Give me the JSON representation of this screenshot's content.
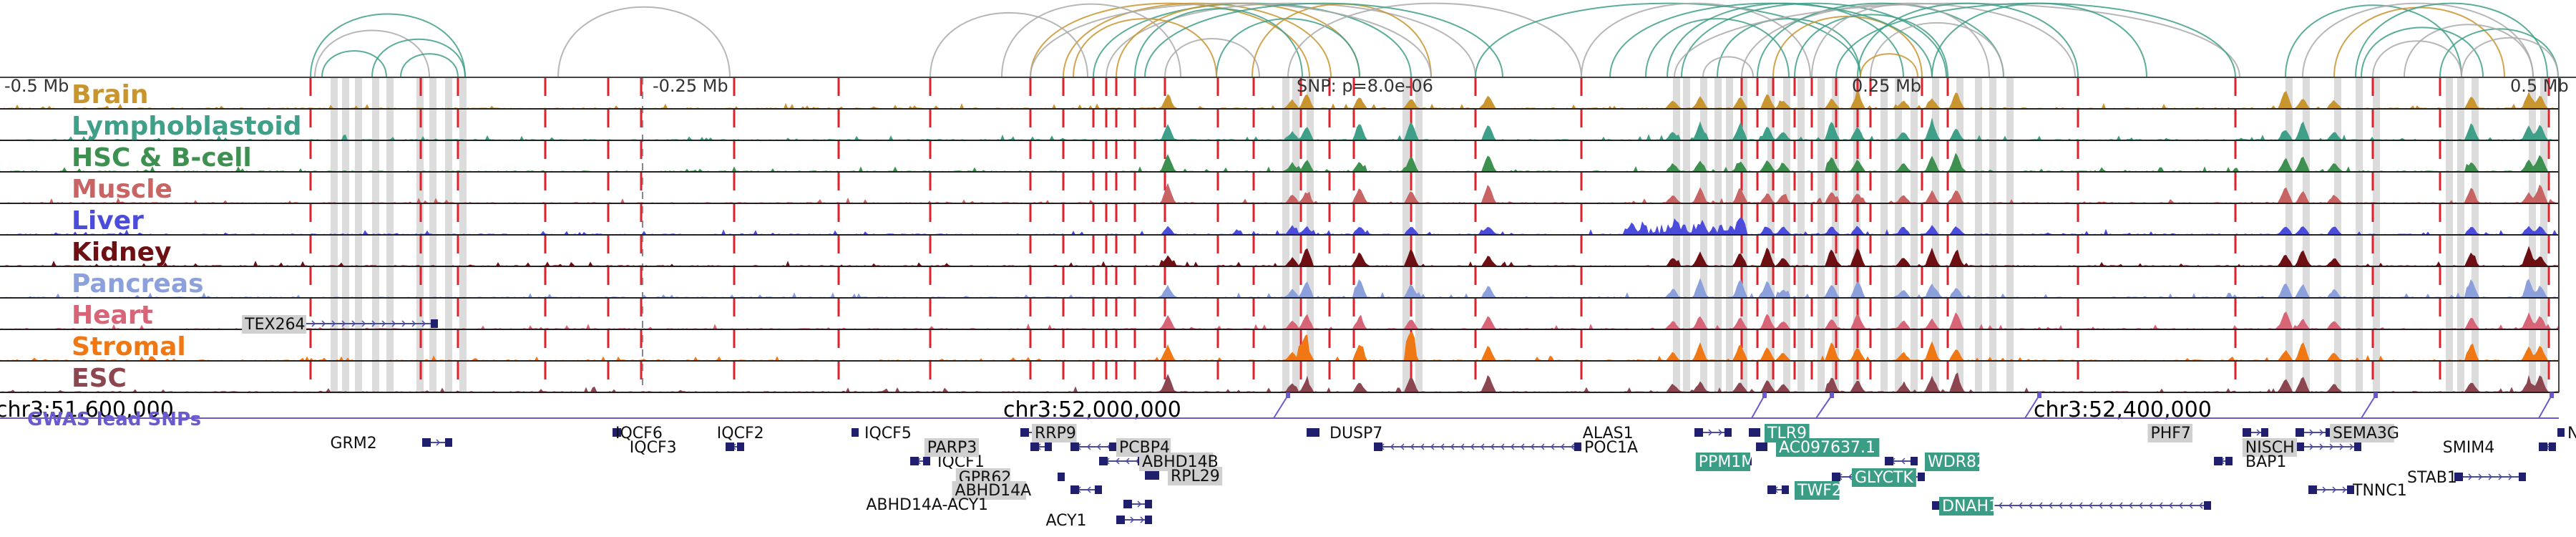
{
  "scale_labels": [
    "-0.5 Mb",
    "-0.25 Mb",
    "0.25 Mb",
    "0.5 Mb"
  ],
  "snp_label": "SNP: p=8.0e-06",
  "tracks": [
    {
      "name": "Brain",
      "color": "#c8952f"
    },
    {
      "name": "Lymphoblastoid",
      "color": "#3f9f88"
    },
    {
      "name": "HSC & B-cell",
      "color": "#3e9050"
    },
    {
      "name": "Muscle",
      "color": "#c86464"
    },
    {
      "name": "Liver",
      "color": "#4b4bdc"
    },
    {
      "name": "Kidney",
      "color": "#6e0f14"
    },
    {
      "name": "Pancreas",
      "color": "#8ca0dc"
    },
    {
      "name": "Heart",
      "color": "#d86478"
    },
    {
      "name": "Stromal",
      "color": "#f07814"
    },
    {
      "name": "ESC",
      "color": "#8c4650"
    }
  ],
  "coordinates": [
    "chr3:51,600,000",
    "chr3:52,000,000",
    "chr3:52,400,000"
  ],
  "gwas_label": "GWAS lead SNPs",
  "genes": [
    {
      "name": "TEX264",
      "highlight": "gray"
    },
    {
      "name": "GRM2",
      "highlight": "none"
    },
    {
      "name": "IQCF6",
      "highlight": "none"
    },
    {
      "name": "IQCF3",
      "highlight": "none"
    },
    {
      "name": "IQCF2",
      "highlight": "none"
    },
    {
      "name": "IQCF5",
      "highlight": "none"
    },
    {
      "name": "IQCF1",
      "highlight": "none"
    },
    {
      "name": "RRP9",
      "highlight": "gray"
    },
    {
      "name": "PARP3",
      "highlight": "gray"
    },
    {
      "name": "PCBP4",
      "highlight": "gray"
    },
    {
      "name": "ABHD14B",
      "highlight": "gray"
    },
    {
      "name": "RPL29",
      "highlight": "gray"
    },
    {
      "name": "GPR62",
      "highlight": "gray"
    },
    {
      "name": "ABHD14A",
      "highlight": "gray"
    },
    {
      "name": "ABHD14A-ACY1",
      "highlight": "none"
    },
    {
      "name": "ACY1",
      "highlight": "none"
    },
    {
      "name": "DUSP7",
      "highlight": "none"
    },
    {
      "name": "POC1A",
      "highlight": "none"
    },
    {
      "name": "ALAS1",
      "highlight": "none"
    },
    {
      "name": "TLR9",
      "highlight": "teal"
    },
    {
      "name": "AC097637.1",
      "highlight": "teal"
    },
    {
      "name": "PPM1M",
      "highlight": "teal"
    },
    {
      "name": "WDR82",
      "highlight": "teal"
    },
    {
      "name": "GLYCTK",
      "highlight": "teal"
    },
    {
      "name": "TWF2",
      "highlight": "teal"
    },
    {
      "name": "DNAH1",
      "highlight": "teal"
    },
    {
      "name": "PHF7",
      "highlight": "gray"
    },
    {
      "name": "SEMA3G",
      "highlight": "gray"
    },
    {
      "name": "NISCH",
      "highlight": "gray"
    },
    {
      "name": "BAP1",
      "highlight": "none"
    },
    {
      "name": "STAB1",
      "highlight": "none"
    },
    {
      "name": "TNNC1",
      "highlight": "none"
    },
    {
      "name": "SMIM4",
      "highlight": "none"
    },
    {
      "name": "NT",
      "highlight": "none"
    }
  ]
}
